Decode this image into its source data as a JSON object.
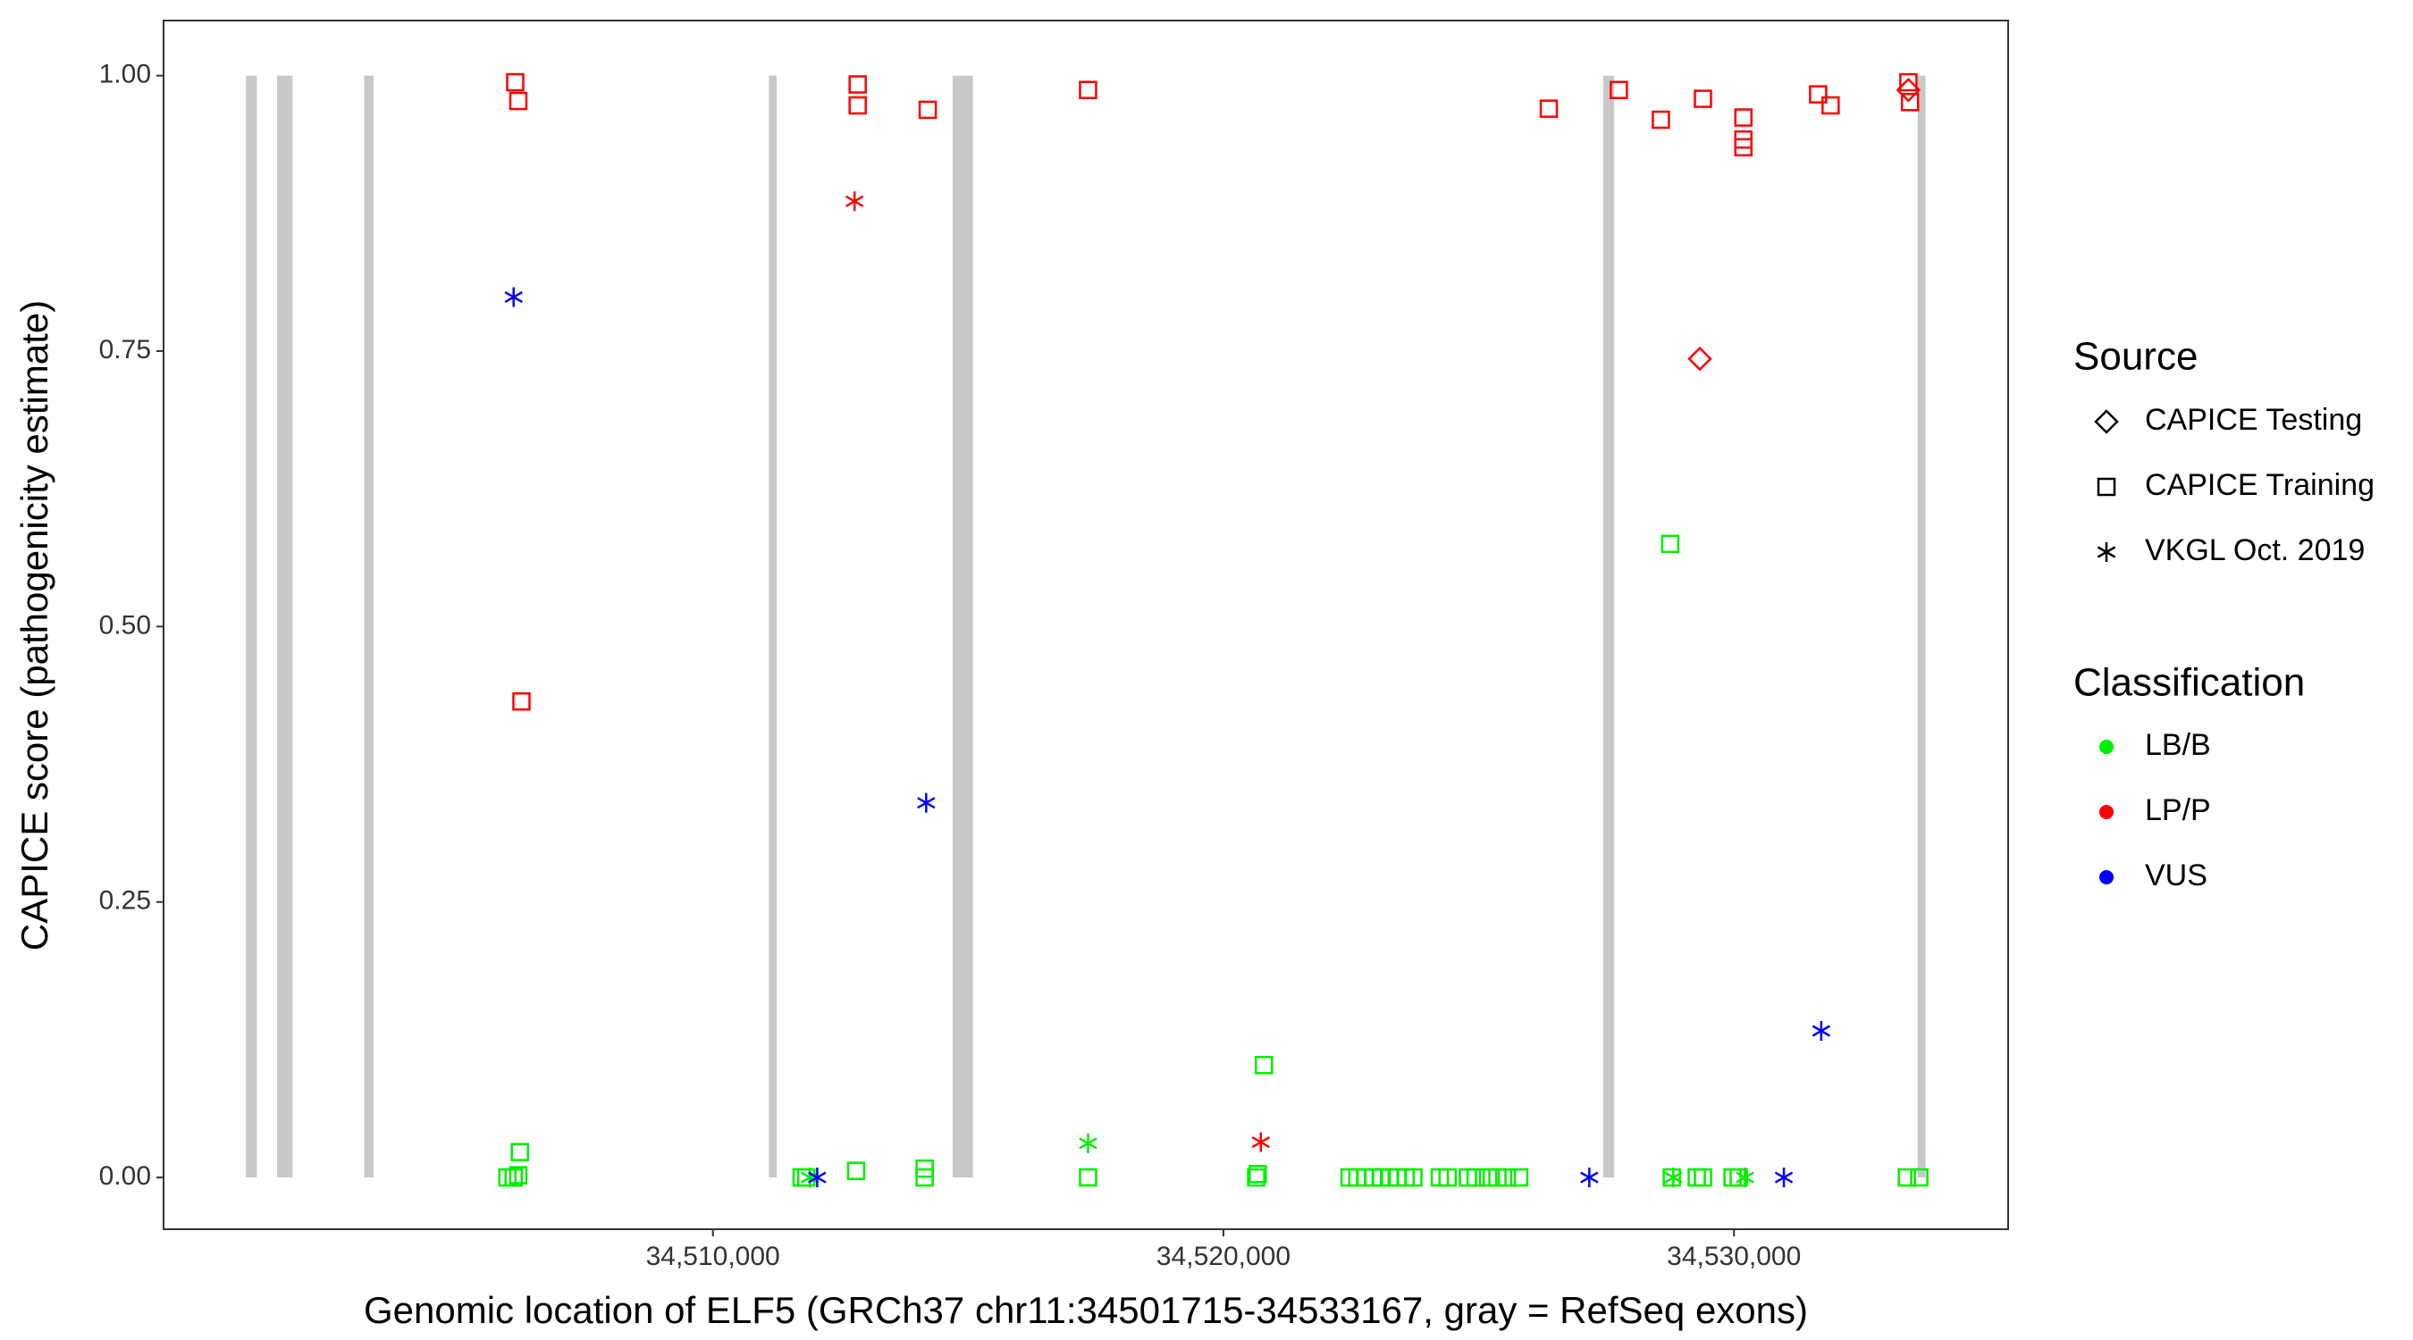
{
  "chart_data": {
    "type": "scatter",
    "x_label": "Genomic location of ELF5 (GRCh37 chr11:34501715-34533167, gray = RefSeq exons)",
    "y_label": "CAPICE score (pathogenicity estimate)",
    "xlim": [
      34499240,
      34535370
    ],
    "ylim": [
      -0.047,
      1.05
    ],
    "xticks": [
      {
        "value": 34510000,
        "label": "34,510,000"
      },
      {
        "value": 34520000,
        "label": "34,520,000"
      },
      {
        "value": 34530000,
        "label": "34,530,000"
      }
    ],
    "yticks": [
      {
        "value": 0,
        "label": "0.00"
      },
      {
        "value": 0.25,
        "label": "0.25"
      },
      {
        "value": 0.5,
        "label": "0.50"
      },
      {
        "value": 0.75,
        "label": "0.75"
      },
      {
        "value": 1,
        "label": "1.00"
      }
    ],
    "grid": false,
    "exon_color": "#c8c8c8",
    "exons": [
      [
        34500853,
        34501067
      ],
      [
        34501463,
        34501768
      ],
      [
        34503170,
        34503353
      ],
      [
        34511098,
        34511250
      ],
      [
        34514695,
        34515092
      ],
      [
        34527440,
        34527654
      ],
      [
        34533599,
        34533752
      ]
    ],
    "source_title": "Source",
    "sources": [
      {
        "name": "CAPICE Testing",
        "shape": "diamond"
      },
      {
        "name": "CAPICE Training",
        "shape": "square"
      },
      {
        "name": "VKGL Oct. 2019",
        "shape": "asterisk"
      }
    ],
    "classification_title": "Classification",
    "classifications": [
      {
        "name": "LB/B",
        "color": "#00ee00",
        "by_source": [
          {
            "x": [],
            "y": []
          },
          {
            "x": [
              34506219,
              34505975,
              34506097,
              34506189,
              34511738,
              34511829,
              34512805,
              34514147,
              34514147,
              34517348,
              34520641,
              34520671,
              34520793,
              34522470,
              34522623,
              34522775,
              34522928,
              34523080,
              34523263,
              34523416,
              34523568,
              34523721,
              34524239,
              34524391,
              34524788,
              34524940,
              34525184,
              34525367,
              34525550,
              34525794,
              34528751,
              34528782,
              34529270,
              34529392,
              34529971,
              34530093,
              34533386,
              34533630
            ],
            "y": [
              0.023,
              0,
              0,
              0.002,
              0,
              0,
              0.006,
              0.008,
              0,
              0,
              0,
              0.003,
              0.102,
              0,
              0,
              0,
              0,
              0,
              0,
              0,
              0,
              0,
              0,
              0,
              0,
              0,
              0,
              0,
              0,
              0,
              0.575,
              0,
              0,
              0,
              0,
              0,
              0,
              0
            ]
          },
          {
            "x": [
              34517348,
              34511900,
              34528812,
              34530215
            ],
            "y": [
              0.031,
              0,
              0,
              0
            ]
          }
        ]
      },
      {
        "name": "LP/P",
        "color": "#ff0000",
        "by_source": [
          {
            "x": [
              34529331,
              34533416
            ],
            "y": [
              0.743,
              0.987
            ]
          },
          {
            "x": [
              34506128,
              34506189,
              34506250,
              34512836,
              34512836,
              34514208,
              34517348,
              34526373,
              34527745,
              34528568,
              34529392,
              34530184,
              34530184,
              34530184,
              34531648,
              34531892,
              34533447,
              34533416
            ],
            "y": [
              0.994,
              0.977,
              0.432,
              0.992,
              0.973,
              0.969,
              0.987,
              0.97,
              0.987,
              0.96,
              0.979,
              0.962,
              0.942,
              0.935,
              0.983,
              0.973,
              0.976,
              0.994
            ]
          },
          {
            "x": [
              34512775,
              34520732
            ],
            "y": [
              0.886,
              0.032
            ]
          }
        ]
      },
      {
        "name": "VUS",
        "color": "#0000ff",
        "by_source": [
          {
            "x": [],
            "y": []
          },
          {
            "x": [],
            "y": []
          },
          {
            "x": [
              34506097,
              34514177,
              34512043,
              34527166,
              34530977,
              34531709
            ],
            "y": [
              0.799,
              0.34,
              0,
              0,
              0,
              0.133
            ]
          }
        ]
      }
    ]
  }
}
